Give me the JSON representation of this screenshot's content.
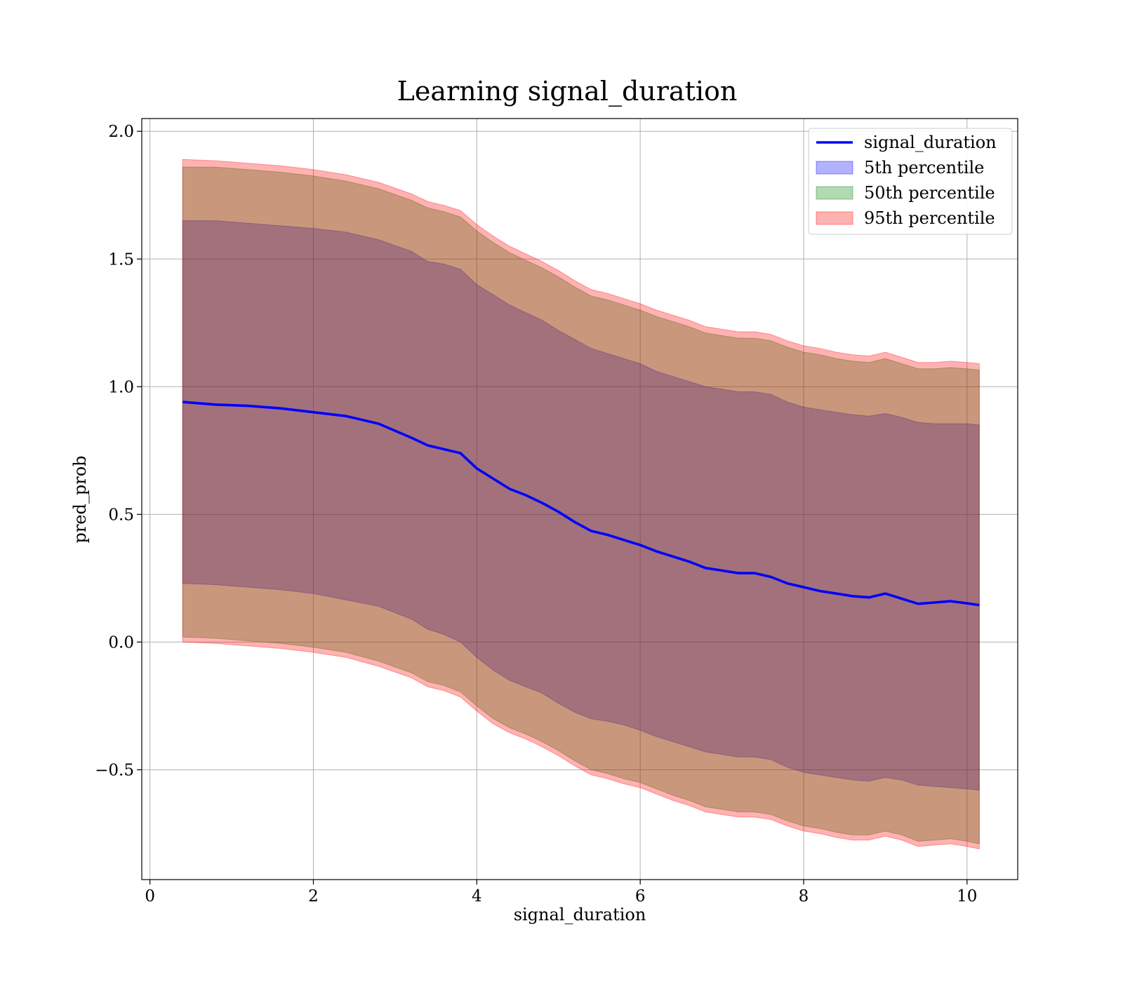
{
  "chart_data": {
    "type": "area",
    "title": "Learning signal_duration",
    "xlabel": "signal_duration",
    "ylabel": "pred_prob",
    "xlim": [
      -0.1,
      10.62
    ],
    "ylim": [
      -0.93,
      2.05
    ],
    "xticks": [
      0,
      2,
      4,
      6,
      8,
      10
    ],
    "xtick_labels": [
      "0",
      "2",
      "4",
      "6",
      "8",
      "10"
    ],
    "yticks": [
      -0.5,
      0.0,
      0.5,
      1.0,
      1.5,
      2.0
    ],
    "ytick_labels": [
      "−0.5",
      "0.0",
      "0.5",
      "1.0",
      "1.5",
      "2.0"
    ],
    "grid": true,
    "legend_position": "top-right",
    "x": [
      0.4,
      0.8,
      1.2,
      1.6,
      2.0,
      2.4,
      2.8,
      3.2,
      3.4,
      3.6,
      3.8,
      4.0,
      4.2,
      4.4,
      4.6,
      4.8,
      5.0,
      5.2,
      5.4,
      5.6,
      5.8,
      6.0,
      6.2,
      6.4,
      6.6,
      6.8,
      7.0,
      7.2,
      7.4,
      7.6,
      7.8,
      8.0,
      8.2,
      8.4,
      8.6,
      8.8,
      9.0,
      9.2,
      9.4,
      9.6,
      9.8,
      10.0,
      10.15
    ],
    "series": [
      {
        "name": "signal_duration",
        "color": "#0000ff",
        "values": [
          0.94,
          0.93,
          0.925,
          0.915,
          0.9,
          0.885,
          0.855,
          0.8,
          0.77,
          0.755,
          0.74,
          0.68,
          0.64,
          0.6,
          0.575,
          0.545,
          0.51,
          0.47,
          0.435,
          0.42,
          0.4,
          0.38,
          0.355,
          0.335,
          0.315,
          0.29,
          0.28,
          0.27,
          0.27,
          0.255,
          0.23,
          0.215,
          0.2,
          0.19,
          0.18,
          0.175,
          0.19,
          0.17,
          0.15,
          0.155,
          0.16,
          0.152,
          0.145
        ]
      },
      {
        "name": "5th percentile",
        "color": "#0000ff",
        "opacity": 0.3,
        "lower": [
          0.23,
          0.225,
          0.215,
          0.205,
          0.19,
          0.165,
          0.14,
          0.09,
          0.05,
          0.03,
          0.0,
          -0.06,
          -0.11,
          -0.15,
          -0.175,
          -0.2,
          -0.24,
          -0.275,
          -0.3,
          -0.31,
          -0.325,
          -0.345,
          -0.37,
          -0.39,
          -0.41,
          -0.43,
          -0.44,
          -0.45,
          -0.45,
          -0.46,
          -0.49,
          -0.51,
          -0.52,
          -0.53,
          -0.54,
          -0.545,
          -0.53,
          -0.54,
          -0.56,
          -0.565,
          -0.57,
          -0.575,
          -0.58
        ],
        "upper": [
          1.65,
          1.65,
          1.64,
          1.63,
          1.62,
          1.605,
          1.575,
          1.53,
          1.49,
          1.48,
          1.46,
          1.4,
          1.36,
          1.32,
          1.29,
          1.26,
          1.22,
          1.185,
          1.15,
          1.13,
          1.11,
          1.09,
          1.06,
          1.04,
          1.02,
          1.0,
          0.99,
          0.98,
          0.98,
          0.97,
          0.94,
          0.92,
          0.91,
          0.9,
          0.89,
          0.885,
          0.895,
          0.88,
          0.86,
          0.855,
          0.855,
          0.855,
          0.85
        ]
      },
      {
        "name": "50th percentile",
        "color": "#008000",
        "opacity": 0.3,
        "lower": [
          0.02,
          0.015,
          0.005,
          -0.005,
          -0.02,
          -0.04,
          -0.075,
          -0.12,
          -0.155,
          -0.17,
          -0.195,
          -0.25,
          -0.3,
          -0.335,
          -0.36,
          -0.39,
          -0.425,
          -0.465,
          -0.5,
          -0.515,
          -0.535,
          -0.55,
          -0.575,
          -0.6,
          -0.62,
          -0.645,
          -0.655,
          -0.665,
          -0.665,
          -0.675,
          -0.7,
          -0.72,
          -0.73,
          -0.745,
          -0.755,
          -0.755,
          -0.74,
          -0.755,
          -0.78,
          -0.775,
          -0.77,
          -0.78,
          -0.79
        ],
        "upper": [
          1.86,
          1.86,
          1.85,
          1.84,
          1.825,
          1.805,
          1.775,
          1.73,
          1.7,
          1.685,
          1.665,
          1.61,
          1.565,
          1.525,
          1.495,
          1.465,
          1.43,
          1.39,
          1.355,
          1.34,
          1.32,
          1.3,
          1.275,
          1.255,
          1.235,
          1.21,
          1.2,
          1.19,
          1.19,
          1.18,
          1.155,
          1.135,
          1.125,
          1.11,
          1.1,
          1.095,
          1.11,
          1.09,
          1.07,
          1.07,
          1.075,
          1.07,
          1.065
        ]
      },
      {
        "name": "95th percentile",
        "color": "#ff0000",
        "opacity": 0.3,
        "lower": [
          0.0,
          -0.005,
          -0.015,
          -0.025,
          -0.04,
          -0.06,
          -0.095,
          -0.14,
          -0.175,
          -0.19,
          -0.215,
          -0.27,
          -0.32,
          -0.355,
          -0.38,
          -0.41,
          -0.445,
          -0.485,
          -0.52,
          -0.535,
          -0.555,
          -0.57,
          -0.595,
          -0.62,
          -0.64,
          -0.665,
          -0.675,
          -0.685,
          -0.685,
          -0.695,
          -0.72,
          -0.74,
          -0.75,
          -0.765,
          -0.775,
          -0.775,
          -0.76,
          -0.775,
          -0.8,
          -0.795,
          -0.79,
          -0.8,
          -0.81
        ],
        "upper": [
          1.89,
          1.885,
          1.875,
          1.865,
          1.85,
          1.83,
          1.8,
          1.755,
          1.725,
          1.71,
          1.69,
          1.635,
          1.59,
          1.55,
          1.52,
          1.49,
          1.455,
          1.415,
          1.38,
          1.365,
          1.345,
          1.325,
          1.3,
          1.28,
          1.26,
          1.235,
          1.225,
          1.215,
          1.215,
          1.205,
          1.18,
          1.16,
          1.15,
          1.135,
          1.125,
          1.12,
          1.135,
          1.115,
          1.095,
          1.095,
          1.1,
          1.095,
          1.09
        ]
      }
    ]
  }
}
